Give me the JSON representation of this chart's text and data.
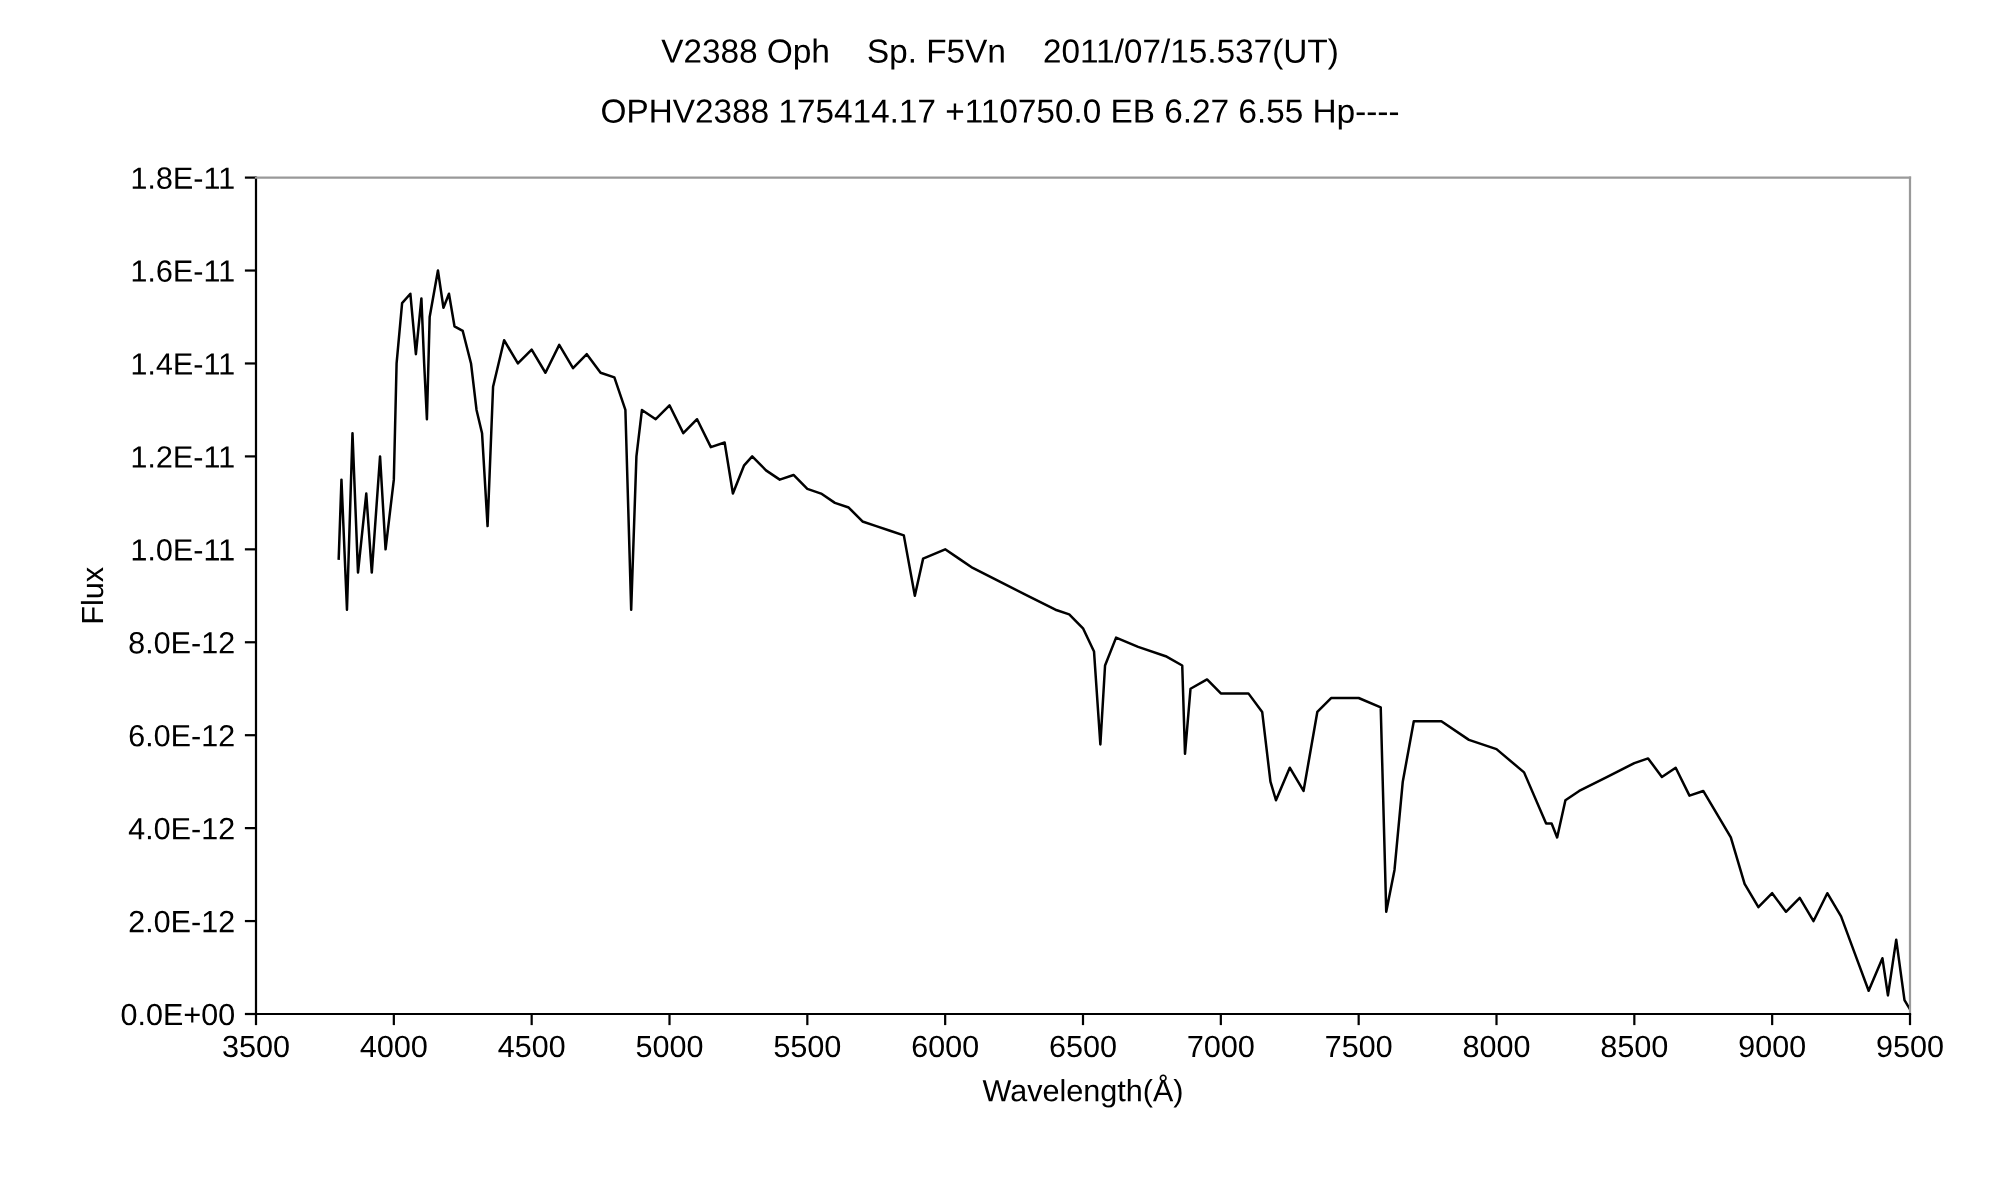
{
  "chart_data": {
    "type": "line",
    "title": "V2388 Oph    Sp. F5Vn    2011/07/15.537(UT)",
    "subtitle": "OPHV2388 175414.17 +110750.0 EB 6.27 6.55 Hp----",
    "xlabel": "Wavelength(Å)",
    "ylabel": "Flux",
    "xlim": [
      3500,
      9500
    ],
    "xticks": [
      3500,
      4000,
      4500,
      5000,
      5500,
      6000,
      6500,
      7000,
      7500,
      8000,
      8500,
      9000,
      9500
    ],
    "ylim": [
      0,
      1.8e-11
    ],
    "yticks": [
      {
        "value": 0,
        "label": "0.0E+00"
      },
      {
        "value": 2e-12,
        "label": "2.0E-12"
      },
      {
        "value": 4e-12,
        "label": "4.0E-12"
      },
      {
        "value": 6e-12,
        "label": "6.0E-12"
      },
      {
        "value": 8e-12,
        "label": "8.0E-12"
      },
      {
        "value": 1e-11,
        "label": "1.0E-11"
      },
      {
        "value": 1.2e-11,
        "label": "1.2E-11"
      },
      {
        "value": 1.4e-11,
        "label": "1.4E-11"
      },
      {
        "value": 1.6e-11,
        "label": "1.6E-11"
      },
      {
        "value": 1.8e-11,
        "label": "1.8E-11"
      }
    ],
    "grid": false,
    "legend": false,
    "marker": "none",
    "line_style": "solid",
    "series": [
      {
        "color": "#000000",
        "x": [
          3800,
          3810,
          3830,
          3850,
          3870,
          3900,
          3920,
          3950,
          3970,
          4000,
          4010,
          4030,
          4060,
          4080,
          4100,
          4110,
          4120,
          4130,
          4160,
          4180,
          4200,
          4220,
          4250,
          4280,
          4300,
          4320,
          4340,
          4360,
          4400,
          4450,
          4500,
          4550,
          4600,
          4650,
          4700,
          4750,
          4800,
          4840,
          4861,
          4880,
          4900,
          4950,
          5000,
          5050,
          5100,
          5150,
          5200,
          5230,
          5270,
          5300,
          5350,
          5400,
          5450,
          5500,
          5550,
          5600,
          5650,
          5700,
          5750,
          5800,
          5850,
          5890,
          5920,
          6000,
          6050,
          6100,
          6200,
          6300,
          6400,
          6450,
          6500,
          6540,
          6563,
          6580,
          6620,
          6700,
          6800,
          6860,
          6870,
          6890,
          6950,
          7000,
          7100,
          7150,
          7180,
          7200,
          7250,
          7300,
          7350,
          7400,
          7500,
          7580,
          7600,
          7630,
          7660,
          7700,
          7800,
          7900,
          8000,
          8100,
          8180,
          8200,
          8220,
          8250,
          8300,
          8400,
          8500,
          8550,
          8600,
          8650,
          8700,
          8750,
          8800,
          8850,
          8900,
          8950,
          9000,
          9050,
          9100,
          9150,
          9200,
          9250,
          9300,
          9350,
          9400,
          9420,
          9450,
          9480,
          9500
        ],
        "values": [
          9.8e-12,
          1.15e-11,
          8.7e-12,
          1.25e-11,
          9.5e-12,
          1.12e-11,
          9.5e-12,
          1.2e-11,
          1e-11,
          1.15e-11,
          1.4e-11,
          1.53e-11,
          1.55e-11,
          1.42e-11,
          1.54e-11,
          1.4e-11,
          1.28e-11,
          1.5e-11,
          1.6e-11,
          1.52e-11,
          1.55e-11,
          1.48e-11,
          1.47e-11,
          1.4e-11,
          1.3e-11,
          1.25e-11,
          1.05e-11,
          1.35e-11,
          1.45e-11,
          1.4e-11,
          1.43e-11,
          1.38e-11,
          1.44e-11,
          1.39e-11,
          1.42e-11,
          1.38e-11,
          1.37e-11,
          1.3e-11,
          8.7e-12,
          1.2e-11,
          1.3e-11,
          1.28e-11,
          1.31e-11,
          1.25e-11,
          1.28e-11,
          1.22e-11,
          1.23e-11,
          1.12e-11,
          1.18e-11,
          1.2e-11,
          1.17e-11,
          1.15e-11,
          1.16e-11,
          1.13e-11,
          1.12e-11,
          1.1e-11,
          1.09e-11,
          1.06e-11,
          1.05e-11,
          1.04e-11,
          1.03e-11,
          9e-12,
          9.8e-12,
          1e-11,
          9.8e-12,
          9.6e-12,
          9.3e-12,
          9e-12,
          8.7e-12,
          8.6e-12,
          8.3e-12,
          7.8e-12,
          5.8e-12,
          7.5e-12,
          8.1e-12,
          7.9e-12,
          7.7e-12,
          7.5e-12,
          5.6e-12,
          7e-12,
          7.2e-12,
          6.9e-12,
          6.9e-12,
          6.5e-12,
          5e-12,
          4.6e-12,
          5.3e-12,
          4.8e-12,
          6.5e-12,
          6.8e-12,
          6.8e-12,
          6.6e-12,
          2.2e-12,
          3.1e-12,
          5e-12,
          6.3e-12,
          6.3e-12,
          5.9e-12,
          5.7e-12,
          5.2e-12,
          4.1e-12,
          4.1e-12,
          3.8e-12,
          4.6e-12,
          4.8e-12,
          5.1e-12,
          5.4e-12,
          5.5e-12,
          5.1e-12,
          5.3e-12,
          4.7e-12,
          4.8e-12,
          4.3e-12,
          3.8e-12,
          2.8e-12,
          2.3e-12,
          2.6e-12,
          2.2e-12,
          2.5e-12,
          2e-12,
          2.6e-12,
          2.1e-12,
          1.3e-12,
          5e-13,
          1.2e-12,
          4e-13,
          1.6e-12,
          3e-13,
          1e-13
        ]
      }
    ]
  }
}
